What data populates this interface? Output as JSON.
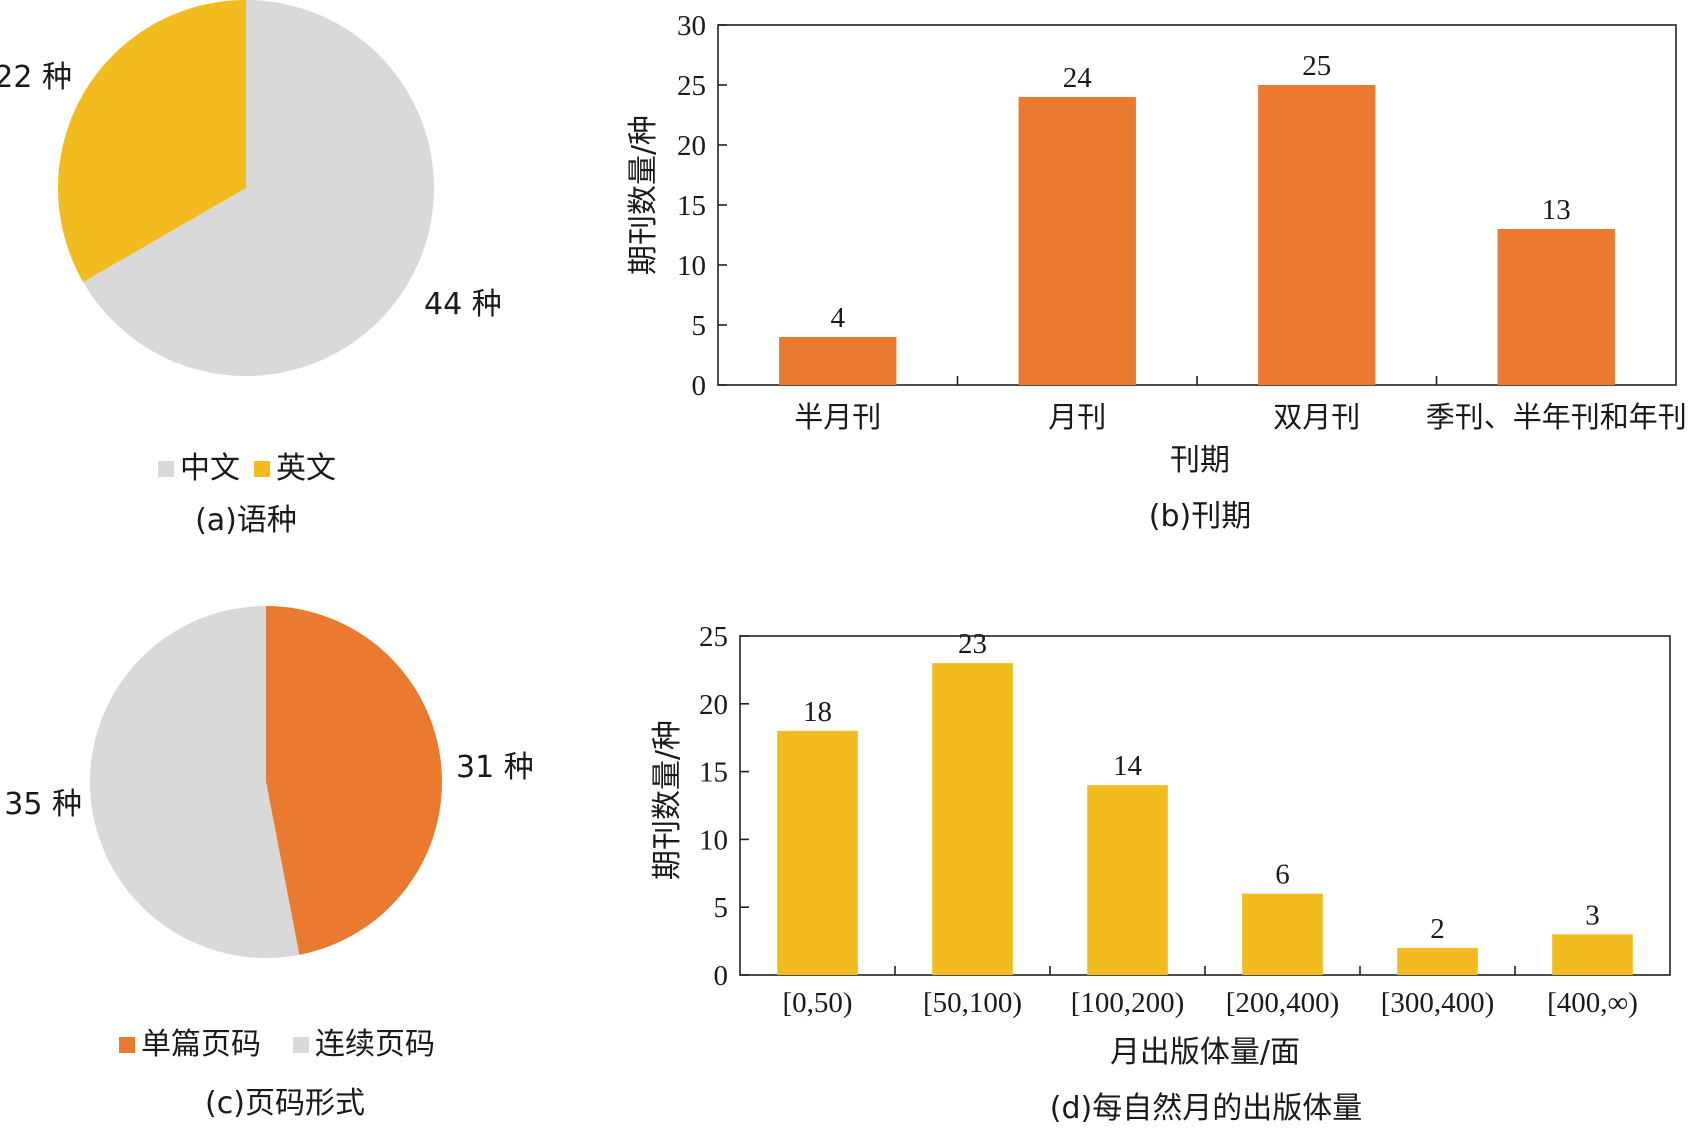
{
  "chart_data": [
    {
      "type": "pie",
      "caption": "(a)语种",
      "slices": [
        {
          "name": "中文",
          "value": 44,
          "label": "44 种",
          "color": "#d9d9d9"
        },
        {
          "name": "英文",
          "value": 22,
          "label": "22 种",
          "color": "#f2bb1f"
        }
      ],
      "legend": [
        "中文",
        "英文"
      ],
      "legend_position": "bottom"
    },
    {
      "type": "bar",
      "caption": "(b)刊期",
      "categories": [
        "半月刊",
        "月刊",
        "双月刊",
        "季刊、半年刊和年刊"
      ],
      "values": [
        4,
        24,
        25,
        13
      ],
      "value_labels": [
        "4",
        "24",
        "25",
        "13"
      ],
      "xlabel": "刊期",
      "ylabel": "期刊数量/种",
      "ylim": [
        0,
        30
      ],
      "yticks": [
        "0",
        "5",
        "10",
        "15",
        "20",
        "25",
        "30"
      ],
      "bar_color": "#ea7a30",
      "grid": false
    },
    {
      "type": "pie",
      "caption": "(c)页码形式",
      "slices": [
        {
          "name": "单篇页码",
          "value": 31,
          "label": "31 种",
          "color": "#ea7a30"
        },
        {
          "name": "连续页码",
          "value": 35,
          "label": "35 种",
          "color": "#d9d9d9"
        }
      ],
      "legend": [
        "单篇页码",
        "连续页码"
      ],
      "legend_position": "bottom"
    },
    {
      "type": "bar",
      "caption": "(d)每自然月的出版体量",
      "categories": [
        "[0,50)",
        "[50,100)",
        "[100,200)",
        "[200,400)",
        "[300,400)",
        "[400,∞)"
      ],
      "values": [
        18,
        23,
        14,
        6,
        2,
        3
      ],
      "value_labels": [
        "18",
        "23",
        "14",
        "6",
        "2",
        "3"
      ],
      "xlabel": "月出版体量/面",
      "ylabel": "期刊数量/种",
      "ylim": [
        0,
        25
      ],
      "yticks": [
        "0",
        "5",
        "10",
        "15",
        "20",
        "25"
      ],
      "bar_color": "#f2bb1f",
      "grid": false
    }
  ]
}
